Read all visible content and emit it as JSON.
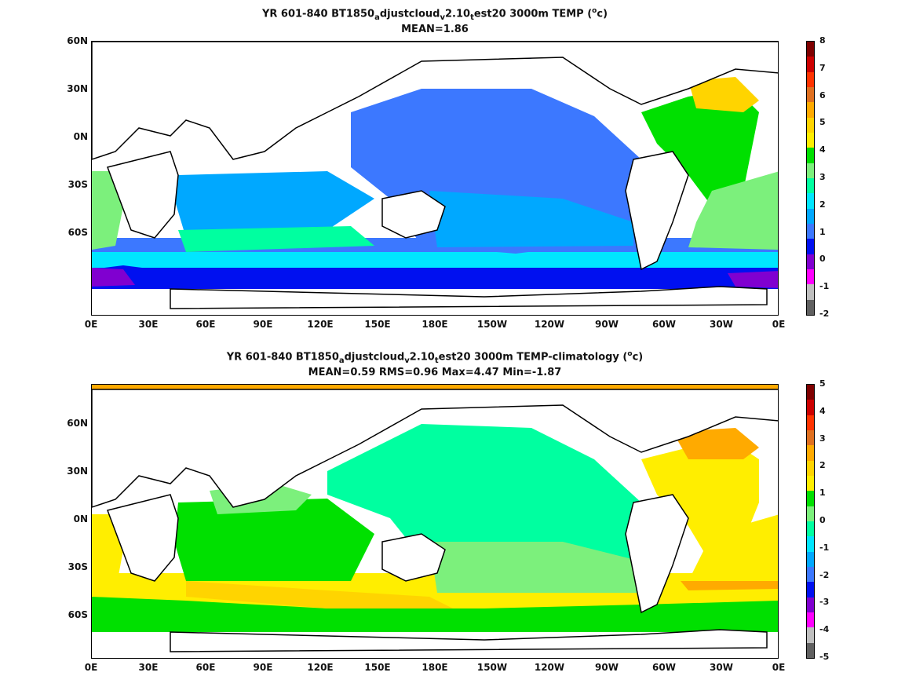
{
  "panels": [
    {
      "title_parts": [
        "YR 601-840 BT1850",
        "a",
        "djustcloud",
        "v",
        "2.10",
        "t",
        "est20 3000m TEMP (",
        "o",
        "c)"
      ],
      "stats": "MEAN=1.86",
      "colorbar_labels": [
        "8",
        "7",
        "6",
        "5",
        "4",
        "3",
        "2",
        "1",
        "0",
        "-1",
        "-2"
      ],
      "colorbar_colors": [
        "#7f0000",
        "#cc0000",
        "#ff3300",
        "#e07020",
        "#ffaa00",
        "#ffd400",
        "#ffee00",
        "#00e000",
        "#7cf07c",
        "#00ffa0",
        "#00e6ff",
        "#00a8ff",
        "#3c78ff",
        "#0010f0",
        "#8000d0",
        "#ff00ff",
        "#bfbfbf",
        "#606060"
      ]
    },
    {
      "title_parts": [
        "YR 601-840 BT1850",
        "a",
        "djustcloud",
        "v",
        "2.10",
        "t",
        "est20 3000m TEMP-climatology (",
        "o",
        "c)"
      ],
      "stats": "MEAN=0.59   RMS=0.96   Max=4.47   Min=-1.87",
      "colorbar_labels": [
        "5",
        "4",
        "3",
        "2",
        "1",
        "0",
        "-1",
        "-2",
        "-3",
        "-4",
        "-5"
      ],
      "colorbar_colors": [
        "#7f0000",
        "#cc0000",
        "#ff3300",
        "#e07020",
        "#ffaa00",
        "#ffd400",
        "#ffee00",
        "#00e000",
        "#7cf07c",
        "#00ffa0",
        "#00e6ff",
        "#00a8ff",
        "#3c78ff",
        "#0010f0",
        "#8000d0",
        "#ff00ff",
        "#bfbfbf",
        "#606060"
      ]
    }
  ],
  "axes": {
    "lat_labels": [
      "60N",
      "30N",
      "0N",
      "30S",
      "60S"
    ],
    "lon_labels": [
      "0E",
      "30E",
      "60E",
      "90E",
      "120E",
      "150E",
      "180E",
      "150W",
      "120W",
      "90W",
      "60W",
      "30W",
      "0E"
    ]
  }
}
